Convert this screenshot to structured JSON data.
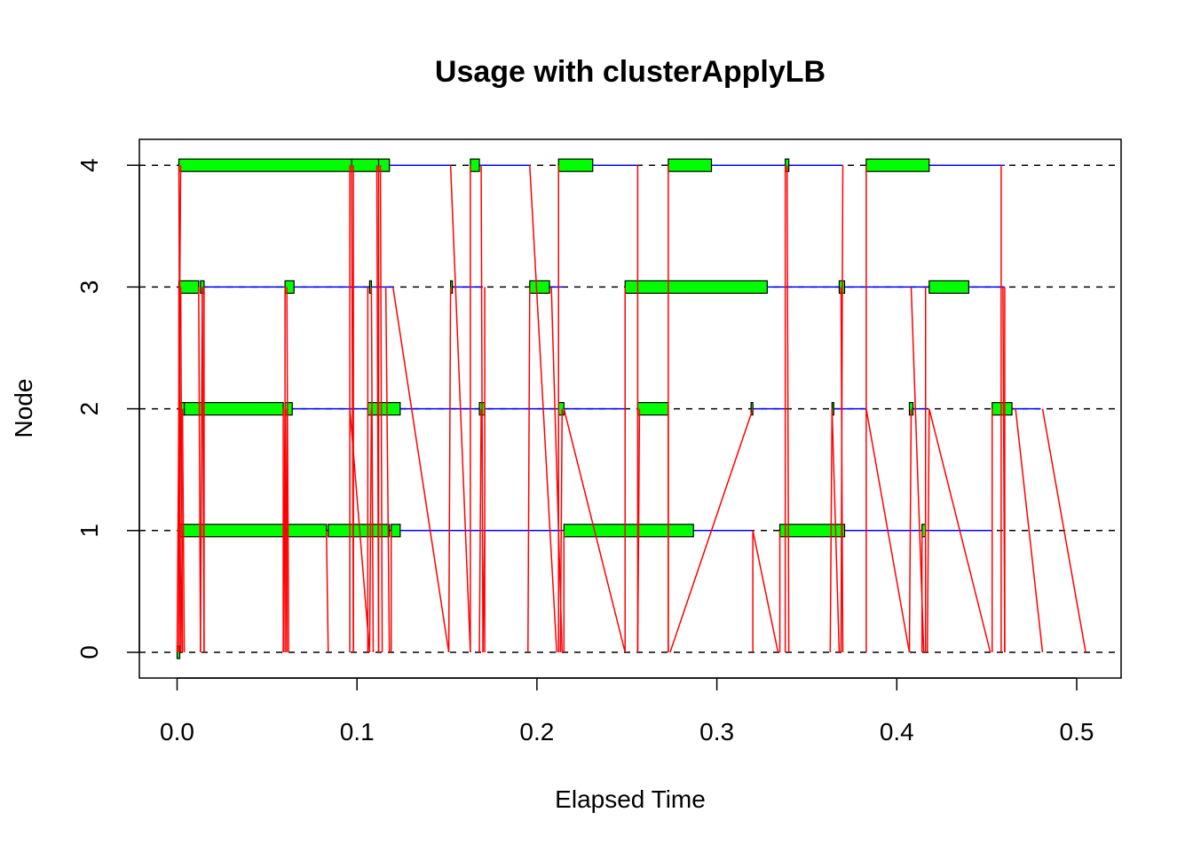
{
  "chart_data": {
    "type": "timeline",
    "title": "Usage with clusterApplyLB",
    "xlabel": "Elapsed Time",
    "ylabel": "Node",
    "xlim": [
      0,
      0.52
    ],
    "ylim": [
      -0.2,
      4.2
    ],
    "x_ticks": [
      "0.0",
      "0.1",
      "0.2",
      "0.3",
      "0.4",
      "0.5"
    ],
    "x_tick_values": [
      0,
      0.1,
      0.2,
      0.3,
      0.4,
      0.5
    ],
    "y_ticks": [
      "0",
      "1",
      "2",
      "3",
      "4"
    ],
    "y_tick_values": [
      0,
      1,
      2,
      3,
      4
    ],
    "grid": "dashed horizontal lines at each node",
    "colors": {
      "compute": "#00ff00",
      "idle": "#0000ff",
      "message": "#ff0000",
      "grid": "#000000"
    },
    "nodes": [
      {
        "node": 0,
        "compute": [
          [
            0.0,
            0.0015
          ]
        ],
        "idle": []
      },
      {
        "node": 1,
        "compute": [
          [
            0.001,
            0.083
          ],
          [
            0.084,
            0.118
          ],
          [
            0.119,
            0.124
          ],
          [
            0.215,
            0.287
          ],
          [
            0.335,
            0.371
          ],
          [
            0.414,
            0.416
          ]
        ],
        "idle": [
          [
            0.124,
            0.17
          ],
          [
            0.17,
            0.215
          ],
          [
            0.287,
            0.32
          ],
          [
            0.371,
            0.414
          ],
          [
            0.416,
            0.453
          ]
        ]
      },
      {
        "node": 2,
        "compute": [
          [
            0.001,
            0.004
          ],
          [
            0.004,
            0.059
          ],
          [
            0.06,
            0.064
          ],
          [
            0.106,
            0.124
          ],
          [
            0.168,
            0.171
          ],
          [
            0.212,
            0.215
          ],
          [
            0.256,
            0.273
          ],
          [
            0.319,
            0.32
          ],
          [
            0.364,
            0.365
          ],
          [
            0.407,
            0.409
          ],
          [
            0.453,
            0.464
          ]
        ],
        "idle": [
          [
            0.064,
            0.106
          ],
          [
            0.124,
            0.168
          ],
          [
            0.171,
            0.212
          ],
          [
            0.215,
            0.249
          ],
          [
            0.32,
            0.338
          ],
          [
            0.365,
            0.383
          ],
          [
            0.409,
            0.417
          ],
          [
            0.464,
            0.48
          ]
        ]
      },
      {
        "node": 3,
        "compute": [
          [
            0.001,
            0.012
          ],
          [
            0.013,
            0.015
          ],
          [
            0.06,
            0.065
          ],
          [
            0.107,
            0.108
          ],
          [
            0.152,
            0.153
          ],
          [
            0.196,
            0.207
          ],
          [
            0.249,
            0.328
          ],
          [
            0.368,
            0.371
          ],
          [
            0.418,
            0.44
          ]
        ],
        "idle": [
          [
            0.015,
            0.06
          ],
          [
            0.065,
            0.12
          ],
          [
            0.153,
            0.17
          ],
          [
            0.207,
            0.215
          ],
          [
            0.328,
            0.368
          ],
          [
            0.371,
            0.418
          ],
          [
            0.44,
            0.46
          ]
        ]
      },
      {
        "node": 4,
        "compute": [
          [
            0.001,
            0.097
          ],
          [
            0.097,
            0.112
          ],
          [
            0.112,
            0.118
          ],
          [
            0.163,
            0.168
          ],
          [
            0.212,
            0.231
          ],
          [
            0.273,
            0.297
          ],
          [
            0.338,
            0.34
          ],
          [
            0.383,
            0.418
          ]
        ],
        "idle": [
          [
            0.118,
            0.152
          ],
          [
            0.168,
            0.196
          ],
          [
            0.231,
            0.256
          ],
          [
            0.297,
            0.338
          ],
          [
            0.34,
            0.37
          ],
          [
            0.418,
            0.46
          ]
        ]
      }
    ],
    "messages": [
      [
        0.0,
        0,
        0.002,
        4
      ],
      [
        0.001,
        0,
        0.001,
        3
      ],
      [
        0.001,
        0,
        0.002,
        2
      ],
      [
        0.002,
        0,
        0.003,
        1
      ],
      [
        0.001,
        4,
        0.002,
        0
      ],
      [
        0.002,
        3,
        0.003,
        0
      ],
      [
        0.003,
        2,
        0.004,
        0
      ],
      [
        0.012,
        3,
        0.013,
        0
      ],
      [
        0.013,
        0,
        0.014,
        3
      ],
      [
        0.014,
        3,
        0.015,
        0
      ],
      [
        0.015,
        0,
        0.015,
        3
      ],
      [
        0.059,
        2,
        0.059,
        0
      ],
      [
        0.059,
        0,
        0.06,
        2
      ],
      [
        0.06,
        0,
        0.06,
        3
      ],
      [
        0.06,
        2,
        0.061,
        0
      ],
      [
        0.061,
        0,
        0.061,
        2
      ],
      [
        0.061,
        3,
        0.062,
        0
      ],
      [
        0.083,
        1,
        0.084,
        0
      ],
      [
        0.096,
        0,
        0.096,
        4
      ],
      [
        0.097,
        4,
        0.098,
        0
      ],
      [
        0.098,
        0,
        0.098,
        4
      ],
      [
        0.096,
        2,
        0.107,
        0
      ],
      [
        0.106,
        0,
        0.106,
        3
      ],
      [
        0.107,
        0,
        0.108,
        2
      ],
      [
        0.108,
        3,
        0.109,
        0
      ],
      [
        0.111,
        4,
        0.112,
        0
      ],
      [
        0.112,
        0,
        0.112,
        4
      ],
      [
        0.113,
        4,
        0.114,
        0
      ],
      [
        0.116,
        3,
        0.118,
        0
      ],
      [
        0.119,
        0,
        0.119,
        1
      ],
      [
        0.12,
        3,
        0.151,
        0
      ],
      [
        0.151,
        0,
        0.152,
        3
      ],
      [
        0.152,
        4,
        0.163,
        0
      ],
      [
        0.163,
        0,
        0.163,
        4
      ],
      [
        0.168,
        0,
        0.169,
        2
      ],
      [
        0.169,
        4,
        0.17,
        0
      ],
      [
        0.17,
        0,
        0.171,
        1
      ],
      [
        0.171,
        3,
        0.171,
        0
      ],
      [
        0.195,
        0,
        0.196,
        3
      ],
      [
        0.196,
        4,
        0.211,
        0
      ],
      [
        0.212,
        0,
        0.212,
        4
      ],
      [
        0.213,
        0,
        0.214,
        2
      ],
      [
        0.208,
        3,
        0.214,
        0
      ],
      [
        0.215,
        0,
        0.215,
        1
      ],
      [
        0.215,
        2,
        0.249,
        0
      ],
      [
        0.249,
        0,
        0.249,
        3
      ],
      [
        0.256,
        4,
        0.256,
        0
      ],
      [
        0.256,
        0,
        0.257,
        2
      ],
      [
        0.273,
        0,
        0.273,
        4
      ],
      [
        0.273,
        2,
        0.273,
        0
      ],
      [
        0.274,
        0,
        0.32,
        2
      ],
      [
        0.32,
        0,
        0.32,
        1
      ],
      [
        0.32,
        1,
        0.334,
        0
      ],
      [
        0.335,
        0,
        0.335,
        1
      ],
      [
        0.338,
        0,
        0.338,
        4
      ],
      [
        0.339,
        4,
        0.34,
        0
      ],
      [
        0.363,
        0,
        0.364,
        2
      ],
      [
        0.364,
        2,
        0.368,
        0
      ],
      [
        0.37,
        4,
        0.369,
        0
      ],
      [
        0.37,
        0,
        0.369,
        3
      ],
      [
        0.383,
        0,
        0.383,
        4
      ],
      [
        0.383,
        2,
        0.407,
        0
      ],
      [
        0.407,
        0,
        0.408,
        2
      ],
      [
        0.408,
        3,
        0.415,
        0
      ],
      [
        0.414,
        0,
        0.414,
        1
      ],
      [
        0.416,
        0,
        0.416,
        3
      ],
      [
        0.417,
        0,
        0.418,
        2
      ],
      [
        0.418,
        2,
        0.452,
        0
      ],
      [
        0.453,
        0,
        0.453,
        2
      ],
      [
        0.458,
        4,
        0.458,
        0
      ],
      [
        0.459,
        3,
        0.46,
        0
      ],
      [
        0.46,
        0,
        0.46,
        3
      ],
      [
        0.466,
        2,
        0.481,
        0
      ],
      [
        0.481,
        2,
        0.505,
        0
      ]
    ]
  }
}
